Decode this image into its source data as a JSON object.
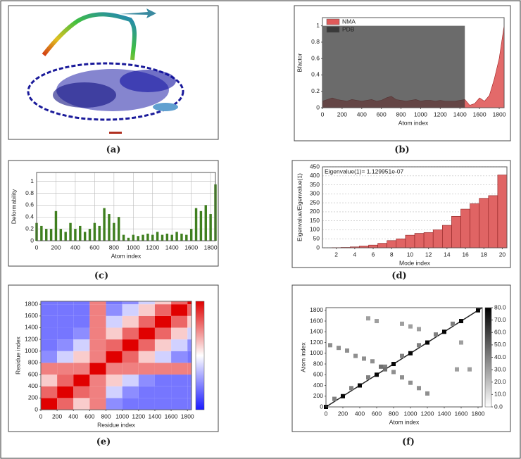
{
  "chart_data": [
    {
      "type": "image",
      "caption": "(a)"
    },
    {
      "type": "area",
      "caption": "(b)",
      "xlabel": "Atom index",
      "ylabel": "Bfactor",
      "x": [
        0,
        50,
        100,
        150,
        200,
        250,
        300,
        350,
        400,
        450,
        500,
        550,
        600,
        650,
        700,
        750,
        800,
        850,
        900,
        950,
        1000,
        1050,
        1100,
        1150,
        1200,
        1250,
        1300,
        1350,
        1400,
        1450,
        1500,
        1550,
        1600,
        1650,
        1700,
        1750,
        1800,
        1850
      ],
      "series": [
        {
          "name": "NMA",
          "color": "#e05a5a",
          "values": [
            0.08,
            0.1,
            0.12,
            0.1,
            0.09,
            0.08,
            0.1,
            0.09,
            0.08,
            0.09,
            0.1,
            0.08,
            0.09,
            0.12,
            0.14,
            0.1,
            0.09,
            0.08,
            0.09,
            0.1,
            0.08,
            0.09,
            0.09,
            0.08,
            0.09,
            0.08,
            0.08,
            0.08,
            0.09,
            0.1,
            0.03,
            0.05,
            0.12,
            0.08,
            0.15,
            0.35,
            0.6,
            1.0
          ]
        },
        {
          "name": "PDB",
          "color": "#3a3a3a",
          "values": [
            1,
            1,
            1,
            1,
            1,
            1,
            1,
            1,
            1,
            1,
            1,
            1,
            1,
            1,
            1,
            1,
            1,
            1,
            1,
            1,
            1,
            1,
            1,
            1,
            1,
            1,
            1,
            1,
            1,
            1,
            null,
            null,
            null,
            null,
            null,
            null,
            null,
            null
          ]
        }
      ],
      "xlim": [
        0,
        1850
      ],
      "xticks": [
        0,
        200,
        400,
        600,
        800,
        1000,
        1200,
        1400,
        1600,
        1800
      ],
      "ylim": [
        0,
        1.1
      ],
      "yticks": [
        0,
        0.2,
        0.4,
        0.6,
        0.8,
        1
      ],
      "grid": "none",
      "legend": "top-left"
    },
    {
      "type": "bar",
      "caption": "(c)",
      "xlabel": "Atom index",
      "ylabel": "Deformability",
      "color": "#3f7f1f",
      "x": [
        0,
        50,
        100,
        150,
        200,
        250,
        300,
        350,
        400,
        450,
        500,
        550,
        600,
        650,
        700,
        750,
        800,
        850,
        900,
        950,
        1000,
        1050,
        1100,
        1150,
        1200,
        1250,
        1300,
        1350,
        1400,
        1450,
        1500,
        1550,
        1600,
        1650,
        1700,
        1750,
        1800,
        1850
      ],
      "values": [
        0.3,
        0.25,
        0.2,
        0.2,
        0.5,
        0.2,
        0.15,
        0.3,
        0.2,
        0.25,
        0.15,
        0.2,
        0.3,
        0.25,
        0.55,
        0.45,
        0.3,
        0.4,
        0.1,
        0.05,
        0.1,
        0.08,
        0.1,
        0.12,
        0.1,
        0.15,
        0.1,
        0.12,
        0.1,
        0.15,
        0.12,
        0.1,
        0.2,
        0.55,
        0.5,
        0.6,
        0.45,
        0.95
      ],
      "xlim": [
        0,
        1850
      ],
      "xticks": [
        0,
        200,
        400,
        600,
        800,
        1000,
        1200,
        1400,
        1600,
        1800
      ],
      "ylim": [
        0,
        1.15
      ],
      "yticks": [
        0,
        0.2,
        0.4,
        0.6,
        0.8,
        1
      ],
      "grid": "both"
    },
    {
      "type": "bar",
      "caption": "(d)",
      "xlabel": "Mode index",
      "ylabel": "Eigenvalue/Eigenvalue(1)",
      "color": "#e06464",
      "annotation": "Eigenvalue(1)= 1.129951e-07",
      "x": [
        1,
        2,
        3,
        4,
        5,
        6,
        7,
        8,
        9,
        10,
        11,
        12,
        13,
        14,
        15,
        16,
        17,
        18,
        19,
        20
      ],
      "values": [
        0,
        1,
        2,
        5,
        10,
        15,
        25,
        40,
        50,
        70,
        80,
        85,
        100,
        125,
        175,
        215,
        245,
        275,
        290,
        405
      ],
      "xlim": [
        0.5,
        20.5
      ],
      "xticks": [
        2,
        4,
        6,
        8,
        10,
        12,
        14,
        16,
        18,
        20
      ],
      "ylim": [
        0,
        450
      ],
      "yticks": [
        0,
        50,
        100,
        150,
        200,
        250,
        300,
        350,
        400,
        450
      ],
      "grid": "y"
    },
    {
      "type": "heatmap",
      "caption": "(e)",
      "xlabel": "Residue index",
      "ylabel": "Residue index",
      "xbins": [
        0,
        200,
        400,
        600,
        800,
        1000,
        1200,
        1400,
        1600,
        1800,
        1850
      ],
      "ybins": [
        0,
        200,
        400,
        600,
        800,
        1000,
        1200,
        1400,
        1600,
        1800,
        1850
      ],
      "z": [
        [
          1,
          0.6,
          0.2,
          0.5,
          -0.5,
          -0.6,
          -0.6,
          -0.6,
          -0.6,
          -0.6
        ],
        [
          0.6,
          1,
          0.6,
          0.5,
          -0.2,
          -0.5,
          -0.6,
          -0.6,
          -0.6,
          -0.6
        ],
        [
          0.2,
          0.6,
          1,
          0.5,
          0.2,
          -0.2,
          -0.5,
          -0.6,
          -0.6,
          -0.6
        ],
        [
          0.5,
          0.5,
          0.5,
          1,
          0.5,
          0.5,
          0.5,
          0.5,
          0.5,
          0.5
        ],
        [
          -0.5,
          -0.2,
          0.2,
          0.5,
          1,
          0.6,
          0.2,
          -0.2,
          -0.5,
          -0.6
        ],
        [
          -0.6,
          -0.5,
          -0.2,
          0.5,
          0.6,
          1,
          0.6,
          0.2,
          -0.2,
          -0.5
        ],
        [
          -0.6,
          -0.6,
          -0.5,
          0.5,
          0.2,
          0.6,
          1,
          0.6,
          0.2,
          -0.2
        ],
        [
          -0.6,
          -0.6,
          -0.6,
          0.5,
          -0.2,
          0.2,
          0.6,
          1,
          0.6,
          0.2
        ],
        [
          -0.6,
          -0.6,
          -0.6,
          0.5,
          -0.5,
          -0.2,
          0.2,
          0.6,
          1,
          0.6
        ],
        [
          -0.6,
          -0.6,
          -0.6,
          0.5,
          -0.6,
          -0.5,
          -0.2,
          0.2,
          0.6,
          1
        ]
      ],
      "zlim": [
        -1,
        1
      ],
      "xlim": [
        0,
        1850
      ],
      "xticks": [
        0,
        200,
        400,
        600,
        800,
        1000,
        1200,
        1400,
        1600,
        1800
      ],
      "ylim": [
        0,
        1850
      ],
      "yticks": [
        0,
        200,
        400,
        600,
        800,
        1000,
        1200,
        1400,
        1600,
        1800
      ],
      "grid": "none"
    },
    {
      "type": "scatter",
      "caption": "(f)",
      "xlabel": "Atom index",
      "ylabel": "Atom index",
      "x": [
        0,
        200,
        400,
        600,
        800,
        1000,
        1200,
        1400,
        1600,
        1800,
        100,
        300,
        500,
        700,
        900,
        1100,
        1300,
        1500,
        50,
        150,
        250,
        350,
        450,
        550,
        800,
        900,
        1000,
        1100,
        1200,
        500,
        600,
        900,
        1000,
        1100,
        1600,
        1550,
        1700,
        650,
        700
      ],
      "y": [
        0,
        200,
        400,
        600,
        800,
        1000,
        1200,
        1400,
        1600,
        1800,
        150,
        350,
        550,
        750,
        950,
        1150,
        1350,
        1550,
        1150,
        1100,
        1050,
        950,
        900,
        850,
        650,
        550,
        450,
        350,
        250,
        1650,
        1600,
        1550,
        1500,
        1450,
        1200,
        700,
        700,
        750,
        700
      ],
      "values": [
        78,
        78,
        78,
        78,
        78,
        78,
        78,
        78,
        78,
        78,
        40,
        40,
        40,
        40,
        40,
        40,
        40,
        40,
        35,
        35,
        35,
        35,
        35,
        35,
        35,
        35,
        35,
        35,
        35,
        30,
        30,
        30,
        30,
        30,
        30,
        30,
        30,
        45,
        45
      ],
      "zlim": [
        0,
        80
      ],
      "zticks": [
        {
          "value": 0,
          "label": "0.0"
        },
        {
          "value": 10,
          "label": "10.0"
        },
        {
          "value": 20,
          "label": "20.0"
        },
        {
          "value": 30,
          "label": "30.0"
        },
        {
          "value": 40,
          "label": "40.0"
        },
        {
          "value": 50,
          "label": "50.0"
        },
        {
          "value": 60,
          "label": "60.0"
        },
        {
          "value": 70,
          "label": "70.0"
        },
        {
          "value": 80,
          "label": "80.0"
        }
      ],
      "xlim": [
        0,
        1850
      ],
      "xticks": [
        0,
        200,
        400,
        600,
        800,
        1000,
        1200,
        1400,
        1600,
        1800
      ],
      "ylim": [
        0,
        1850
      ],
      "yticks": [
        0,
        200,
        400,
        600,
        800,
        1000,
        1200,
        1400,
        1600,
        1800
      ],
      "grid": "none"
    }
  ]
}
